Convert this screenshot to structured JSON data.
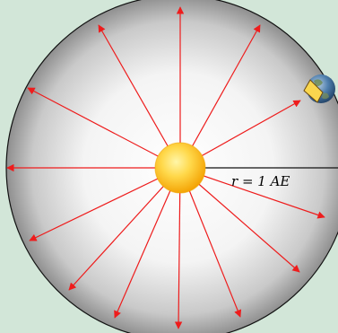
{
  "diagram": {
    "radius_label": "r = 1 AE",
    "ray_count": 18,
    "colors": {
      "background": "#d2e6d8",
      "disk_center": "#ffffff",
      "disk_edge": "#8f8f8f",
      "ray": "#ee1c1c",
      "sun_core": "#ffe96a",
      "sun_edge": "#f3a400",
      "earth": "#3e6c9c",
      "panel": "#f9d64e"
    },
    "icons": {
      "sun": "sun-icon",
      "earth": "earth-icon",
      "panel": "solar-panel-icon"
    }
  }
}
